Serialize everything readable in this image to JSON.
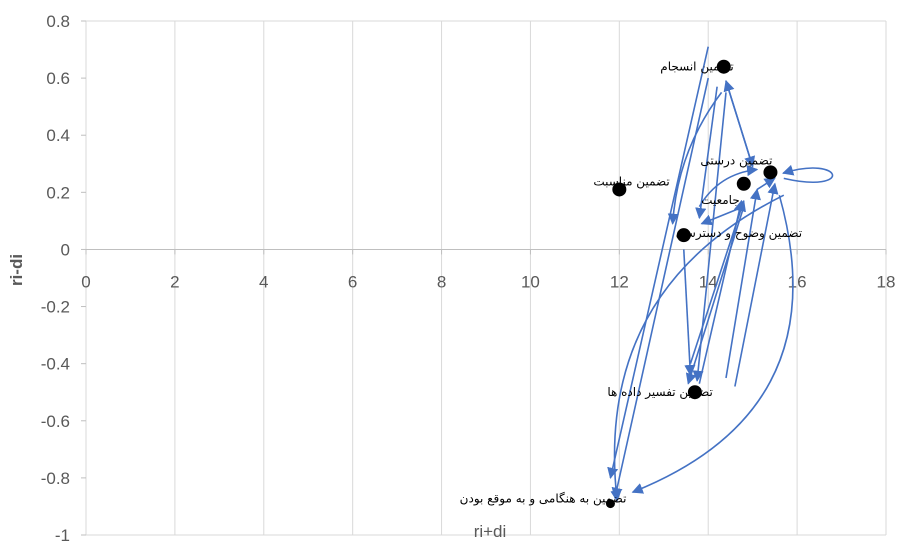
{
  "chart_data": {
    "type": "scatter",
    "xlabel": "ri+di",
    "ylabel": "ri-di",
    "xlim": [
      0,
      18
    ],
    "ylim": [
      -1,
      0.8
    ],
    "x_ticks": [
      "0",
      "2",
      "4",
      "6",
      "8",
      "10",
      "12",
      "14",
      "16",
      "18"
    ],
    "y_ticks": [
      "0.8",
      "0.6",
      "0.4",
      "0.2",
      "0",
      "-0.2",
      "-0.4",
      "-0.6",
      "-0.8",
      "-1"
    ],
    "grid": "vertical",
    "point_color": "#000000",
    "arrow_color": "#4472c4",
    "points": [
      {
        "id": "p1",
        "label": "تضمین انسجام",
        "x": 14.35,
        "y": 0.64
      },
      {
        "id": "p2",
        "label": "تضمین درستی",
        "x": 15.4,
        "y": 0.27
      },
      {
        "id": "p3",
        "label": "جامعیت",
        "x": 14.8,
        "y": 0.23
      },
      {
        "id": "p4",
        "label": "تضمین مناسبت",
        "x": 12.0,
        "y": 0.21
      },
      {
        "id": "p5",
        "label": "تضمین وضوح و دسترسی",
        "x": 13.45,
        "y": 0.05
      },
      {
        "id": "p6",
        "label": "تضمین تفسیر داده ها",
        "x": 13.7,
        "y": -0.5
      },
      {
        "id": "p7",
        "label": "تضمین به هنگامی و به موقع بودن",
        "x": 11.8,
        "y": -0.89
      }
    ],
    "arrows": [
      {
        "from": [
          14.0,
          0.71
        ],
        "to": [
          11.8,
          -0.8
        ],
        "curve": 0
      },
      {
        "from": [
          14.0,
          0.6
        ],
        "to": [
          11.9,
          -0.87
        ],
        "curve": 0
      },
      {
        "from": [
          14.4,
          0.59
        ],
        "to": [
          15.0,
          0.29
        ],
        "curve": 0
      },
      {
        "from": [
          15.0,
          0.29
        ],
        "to": [
          14.4,
          0.59
        ],
        "curve": 0
      },
      {
        "from": [
          14.2,
          0.57
        ],
        "to": [
          13.8,
          0.11
        ],
        "curve": 0
      },
      {
        "from": [
          14.3,
          0.55
        ],
        "to": [
          13.2,
          0.09
        ],
        "curve": 0.15
      },
      {
        "from": [
          14.4,
          0.55
        ],
        "to": [
          13.75,
          -0.46
        ],
        "curve": 0
      },
      {
        "from": [
          14.8,
          0.15
        ],
        "to": [
          13.85,
          0.09
        ],
        "curve": 0
      },
      {
        "from": [
          14.8,
          0.15
        ],
        "to": [
          13.55,
          -0.47
        ],
        "curve": 0
      },
      {
        "from": [
          13.45,
          0.0
        ],
        "to": [
          13.6,
          -0.44
        ],
        "curve": 0
      },
      {
        "from": [
          13.8,
          -0.47
        ],
        "to": [
          14.75,
          0.17
        ],
        "curve": 0
      },
      {
        "from": [
          14.4,
          -0.45
        ],
        "to": [
          15.1,
          0.21
        ],
        "curve": 0
      },
      {
        "from": [
          14.6,
          -0.48
        ],
        "to": [
          15.5,
          0.23
        ],
        "curve": 0
      },
      {
        "from": [
          13.6,
          -0.4
        ],
        "to": [
          14.8,
          0.17
        ],
        "curve": 0
      },
      {
        "from": [
          13.8,
          0.15
        ],
        "to": [
          15.1,
          0.28
        ],
        "curve": -0.25
      },
      {
        "from": [
          15.1,
          0.21
        ],
        "to": [
          15.5,
          0.25
        ],
        "curve": 0
      },
      {
        "from": [
          15.7,
          0.19
        ],
        "to": [
          11.95,
          -0.88
        ],
        "curve": 0.35
      },
      {
        "from": [
          15.6,
          0.19
        ],
        "to": [
          12.3,
          -0.85
        ],
        "curve": -0.45
      }
    ],
    "loop": {
      "at": [
        15.7,
        0.27
      ],
      "to": [
        15.55,
        0.26
      ]
    }
  }
}
